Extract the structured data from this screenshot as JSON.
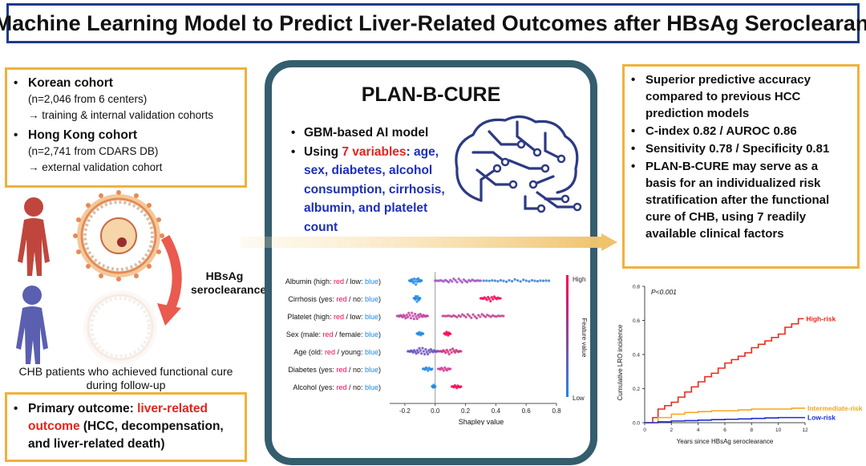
{
  "title": "A Machine Learning Model to Predict Liver-Related Outcomes after HBsAg Seroclearance",
  "cohorts": {
    "korean_title": "Korean cohort",
    "korean_detail": "(n=2,046 from 6 centers)",
    "korean_use": "→ training & internal validation cohorts",
    "hk_title": "Hong Kong cohort",
    "hk_detail": "(n=2,741 from CDARS DB)",
    "hk_use": "→ external validation cohort"
  },
  "hbsag_label": [
    "HBsAg",
    "seroclearance"
  ],
  "chb_caption": [
    "CHB patients who achieved functional cure",
    "during follow-up"
  ],
  "outcome": {
    "prefix": "Primary outcome: ",
    "highlight_1": "liver-related",
    "highlight_2": "outcome",
    "rest_1": " (HCC, decompensation,",
    "rest_2": "and liver-related death)"
  },
  "center": {
    "title": "PLAN-B-CURE",
    "item1": "GBM-based AI model",
    "item2_prefix": "Using ",
    "item2_highlight": "7 variables",
    "item2_lines": [
      ": age,",
      "sex, diabetes, alcohol",
      "consumption, cirrhosis,",
      "albumin, and platelet",
      "count"
    ]
  },
  "summary": {
    "items": [
      [
        "Superior predictive accuracy",
        "compared to previous HCC",
        "prediction models"
      ],
      [
        "C-index 0.82 / AUROC 0.86"
      ],
      [
        "Sensitivity 0.78 / Specificity 0.81"
      ],
      [
        "PLAN-B-CURE may serve as a",
        "basis for an individualized risk",
        "stratification after the functional",
        "cure of CHB, using 7 readily",
        "available clinical factors"
      ]
    ]
  },
  "shap": {
    "features": [
      {
        "name": "Albumin",
        "left": "(high: ",
        "a": "red",
        "mid": " / low: ",
        "b": "blue",
        "end": ")"
      },
      {
        "name": "Cirrhosis",
        "left": "(yes: ",
        "a": "red",
        "mid": " / no: ",
        "b": "blue",
        "end": ")"
      },
      {
        "name": "Platelet",
        "left": "(high: ",
        "a": "red",
        "mid": " / low: ",
        "b": "blue",
        "end": ")"
      },
      {
        "name": "Sex",
        "left": "(male: ",
        "a": "red",
        "mid": " / female: ",
        "b": "blue",
        "end": ")"
      },
      {
        "name": "Age",
        "left": "(old: ",
        "a": "red",
        "mid": " / young: ",
        "b": "blue",
        "end": ")"
      },
      {
        "name": "Diabetes",
        "left": "(yes: ",
        "a": "red",
        "mid": " / no: ",
        "b": "blue",
        "end": ")"
      },
      {
        "name": "Alcohol",
        "left": "(yes: ",
        "a": "red",
        "mid": " / no: ",
        "b": "blue",
        "end": ")"
      }
    ],
    "xticks": [
      "-0.2",
      "0.0",
      "0.2",
      "0.4",
      "0.6",
      "0.8"
    ],
    "xlabel": "Shapley value",
    "legend_high": "High",
    "legend_low": "Low",
    "legend_title": "Feature value",
    "colors": {
      "high": "#ff0052",
      "low": "#1e88e5"
    }
  },
  "chart_data": {
    "type": "line",
    "title": "",
    "annotation": "P<0.001",
    "xlabel": "Years since HBsAg seroclearance",
    "ylabel": "Cumulative LRO incidence",
    "xticks": [
      "0",
      "2",
      "4",
      "6",
      "8",
      "10",
      "12"
    ],
    "yticks": [
      "0.0",
      "0.2",
      "0.4",
      "0.6",
      "0.8"
    ],
    "xlim": [
      0,
      12
    ],
    "ylim": [
      0,
      0.8
    ],
    "series": [
      {
        "name": "High-risk",
        "color": "#e8291c",
        "x": [
          0,
          0.6,
          1.0,
          1.5,
          2.0,
          2.5,
          3.0,
          3.5,
          4.0,
          4.5,
          5.0,
          5.5,
          6.0,
          6.5,
          7.0,
          7.5,
          8.0,
          8.5,
          9.0,
          9.5,
          10.0,
          10.5,
          11.0,
          11.5,
          11.9
        ],
        "y": [
          0,
          0.03,
          0.08,
          0.1,
          0.12,
          0.15,
          0.18,
          0.21,
          0.24,
          0.27,
          0.29,
          0.32,
          0.35,
          0.37,
          0.39,
          0.41,
          0.44,
          0.46,
          0.48,
          0.5,
          0.52,
          0.56,
          0.58,
          0.61,
          0.61
        ]
      },
      {
        "name": "Intermediate-risk",
        "color": "#f5a623",
        "x": [
          0,
          1,
          2,
          3,
          4,
          5,
          6,
          7,
          8,
          9,
          10,
          11,
          12
        ],
        "y": [
          0,
          0.03,
          0.05,
          0.06,
          0.065,
          0.07,
          0.07,
          0.075,
          0.08,
          0.08,
          0.08,
          0.085,
          0.085
        ]
      },
      {
        "name": "Low-risk",
        "color": "#1c2fd6",
        "x": [
          0,
          1,
          2,
          3,
          4,
          5,
          6,
          7,
          8,
          9,
          10,
          11,
          12
        ],
        "y": [
          0,
          0.005,
          0.01,
          0.012,
          0.015,
          0.018,
          0.02,
          0.022,
          0.025,
          0.028,
          0.03,
          0.03,
          0.03
        ]
      }
    ]
  }
}
